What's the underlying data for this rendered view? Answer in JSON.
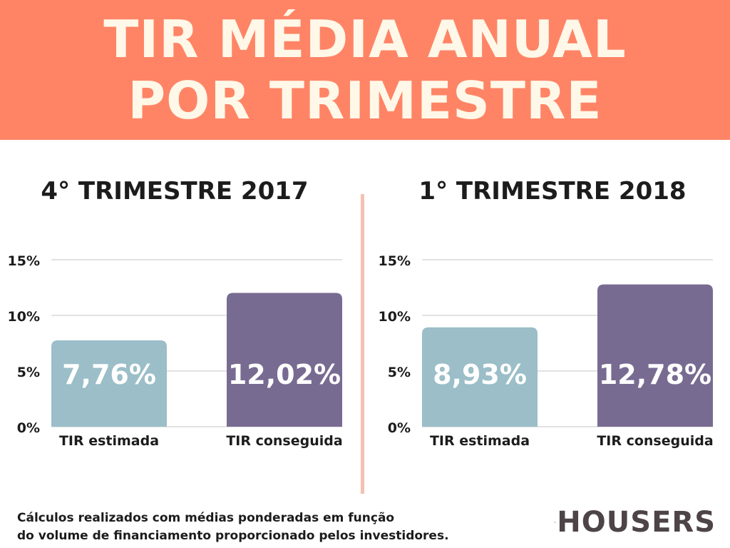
{
  "banner": {
    "title_line1": "TIR MÉDIA ANUAL",
    "title_line2": "POR TRIMESTRE",
    "background": "#ff8466",
    "text_color": "#fff8e8"
  },
  "chart_data": [
    {
      "type": "bar",
      "title": "4° TRIMESTRE 2017",
      "categories": [
        "TIR estimada",
        "TIR conseguida"
      ],
      "values": [
        7.76,
        12.02
      ],
      "value_labels": [
        "7,76%",
        "12,02%"
      ],
      "y_ticks": [
        0,
        5,
        10,
        15
      ],
      "y_tick_labels": [
        "0%",
        "5%",
        "10%",
        "15%"
      ],
      "ylim": [
        0,
        15
      ],
      "grid": true,
      "colors": [
        "#9bbec8",
        "#786b92"
      ]
    },
    {
      "type": "bar",
      "title": "1° TRIMESTRE 2018",
      "categories": [
        "TIR estimada",
        "TIR conseguida"
      ],
      "values": [
        8.93,
        12.78
      ],
      "value_labels": [
        "8,93%",
        "12,78%"
      ],
      "y_ticks": [
        0,
        5,
        10,
        15
      ],
      "y_tick_labels": [
        "0%",
        "5%",
        "10%",
        "15%"
      ],
      "ylim": [
        0,
        15
      ],
      "grid": true,
      "colors": [
        "#9bbec8",
        "#786b92"
      ]
    }
  ],
  "footer": {
    "line1": "Cálculos realizados com médias ponderadas em função",
    "line2": "do volume de financiamento proporcionado pelos investidores."
  },
  "logo": {
    "text": "HOUSERS",
    "icon": "building-logo-icon"
  },
  "colors": {
    "divider": "#f6c0b2",
    "grid": "#d8d8d8",
    "text_dark": "#1c1c1c"
  }
}
